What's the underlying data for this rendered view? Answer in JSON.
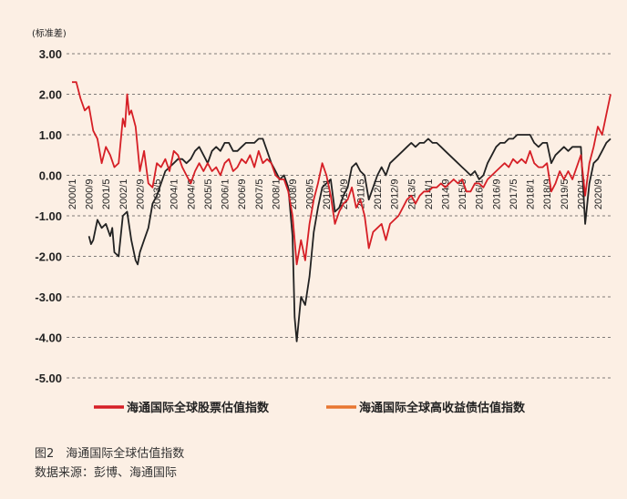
{
  "chart_data": {
    "type": "line",
    "unit_label": "(标准差)",
    "ylim": [
      -5.0,
      3.0
    ],
    "y_ticks": [
      "3.00",
      "2.00",
      "1.00",
      "0.00",
      "-1.00",
      "-2.00",
      "-3.00",
      "-4.00",
      "-5.00"
    ],
    "x_ticks": [
      "2000/1",
      "2000/9",
      "2001/5",
      "2002/1",
      "2002/9",
      "2003/5",
      "2004/1",
      "2004/9",
      "2005/5",
      "2006/1",
      "2006/9",
      "2007/5",
      "2008/1",
      "2008/9",
      "2009/5",
      "2010/1",
      "2010/9",
      "2011/5",
      "2012/1",
      "2012/9",
      "2013/5",
      "2014/1",
      "2014/9",
      "2015/5",
      "2016/1",
      "2016/9",
      "2017/5",
      "2018/1",
      "2018/9",
      "2019/5",
      "2020/1",
      "2020/9"
    ],
    "grid": "horizontal-dashed",
    "legend_position": "bottom",
    "series": [
      {
        "name": "海通国际全球股票估值指数",
        "color": "#d61f26",
        "points": [
          [
            "2000/1",
            2.3
          ],
          [
            "2000/3",
            2.3
          ],
          [
            "2000/5",
            1.9
          ],
          [
            "2000/7",
            1.6
          ],
          [
            "2000/9",
            1.7
          ],
          [
            "2000/11",
            1.1
          ],
          [
            "2001/1",
            0.9
          ],
          [
            "2001/3",
            0.3
          ],
          [
            "2001/5",
            0.7
          ],
          [
            "2001/7",
            0.5
          ],
          [
            "2001/9",
            0.2
          ],
          [
            "2001/11",
            0.3
          ],
          [
            "2002/1",
            1.4
          ],
          [
            "2002/2",
            1.2
          ],
          [
            "2002/3",
            2.0
          ],
          [
            "2002/4",
            1.5
          ],
          [
            "2002/5",
            1.6
          ],
          [
            "2002/7",
            1.2
          ],
          [
            "2002/9",
            0.1
          ],
          [
            "2002/11",
            0.6
          ],
          [
            "2003/1",
            -0.2
          ],
          [
            "2003/3",
            -0.3
          ],
          [
            "2003/5",
            0.3
          ],
          [
            "2003/7",
            0.2
          ],
          [
            "2003/9",
            0.4
          ],
          [
            "2003/11",
            0.1
          ],
          [
            "2004/1",
            0.6
          ],
          [
            "2004/3",
            0.5
          ],
          [
            "2004/5",
            0.2
          ],
          [
            "2004/7",
            0.0
          ],
          [
            "2004/9",
            -0.2
          ],
          [
            "2004/11",
            0.1
          ],
          [
            "2005/1",
            0.3
          ],
          [
            "2005/3",
            0.1
          ],
          [
            "2005/5",
            0.3
          ],
          [
            "2005/7",
            0.1
          ],
          [
            "2005/9",
            0.2
          ],
          [
            "2005/11",
            0.0
          ],
          [
            "2006/1",
            0.3
          ],
          [
            "2006/3",
            0.4
          ],
          [
            "2006/5",
            0.1
          ],
          [
            "2006/7",
            0.2
          ],
          [
            "2006/9",
            0.4
          ],
          [
            "2006/11",
            0.3
          ],
          [
            "2007/1",
            0.5
          ],
          [
            "2007/3",
            0.2
          ],
          [
            "2007/5",
            0.6
          ],
          [
            "2007/7",
            0.3
          ],
          [
            "2007/9",
            0.4
          ],
          [
            "2007/11",
            0.3
          ],
          [
            "2008/1",
            0.0
          ],
          [
            "2008/3",
            -0.1
          ],
          [
            "2008/5",
            -0.1
          ],
          [
            "2008/7",
            -0.4
          ],
          [
            "2008/9",
            -1.0
          ],
          [
            "2008/11",
            -2.2
          ],
          [
            "2009/1",
            -1.6
          ],
          [
            "2009/3",
            -2.1
          ],
          [
            "2009/5",
            -1.2
          ],
          [
            "2009/7",
            -0.6
          ],
          [
            "2009/9",
            -0.2
          ],
          [
            "2009/11",
            0.3
          ],
          [
            "2010/1",
            0.0
          ],
          [
            "2010/3",
            -0.5
          ],
          [
            "2010/5",
            -1.2
          ],
          [
            "2010/7",
            -0.9
          ],
          [
            "2010/9",
            -0.7
          ],
          [
            "2010/11",
            -0.6
          ],
          [
            "2011/1",
            -0.3
          ],
          [
            "2011/3",
            -0.8
          ],
          [
            "2011/5",
            -0.6
          ],
          [
            "2011/7",
            -1.0
          ],
          [
            "2011/9",
            -1.8
          ],
          [
            "2011/11",
            -1.4
          ],
          [
            "2012/1",
            -1.3
          ],
          [
            "2012/3",
            -1.2
          ],
          [
            "2012/5",
            -1.6
          ],
          [
            "2012/7",
            -1.2
          ],
          [
            "2012/9",
            -1.1
          ],
          [
            "2012/11",
            -1.0
          ],
          [
            "2013/1",
            -0.8
          ],
          [
            "2013/3",
            -0.6
          ],
          [
            "2013/5",
            -0.5
          ],
          [
            "2013/7",
            -0.7
          ],
          [
            "2013/9",
            -0.5
          ],
          [
            "2013/11",
            -0.4
          ],
          [
            "2014/1",
            -0.4
          ],
          [
            "2014/3",
            -0.3
          ],
          [
            "2014/5",
            -0.3
          ],
          [
            "2014/7",
            -0.2
          ],
          [
            "2014/9",
            -0.3
          ],
          [
            "2014/11",
            -0.2
          ],
          [
            "2015/1",
            -0.1
          ],
          [
            "2015/3",
            -0.2
          ],
          [
            "2015/5",
            -0.1
          ],
          [
            "2015/7",
            -0.4
          ],
          [
            "2015/9",
            -0.4
          ],
          [
            "2015/11",
            -0.2
          ],
          [
            "2016/1",
            -0.2
          ],
          [
            "2016/3",
            -0.3
          ],
          [
            "2016/5",
            -0.1
          ],
          [
            "2016/7",
            0.0
          ],
          [
            "2016/9",
            0.1
          ],
          [
            "2016/11",
            0.2
          ],
          [
            "2017/1",
            0.3
          ],
          [
            "2017/3",
            0.2
          ],
          [
            "2017/5",
            0.4
          ],
          [
            "2017/7",
            0.3
          ],
          [
            "2017/9",
            0.4
          ],
          [
            "2017/11",
            0.3
          ],
          [
            "2018/1",
            0.6
          ],
          [
            "2018/3",
            0.3
          ],
          [
            "2018/5",
            0.2
          ],
          [
            "2018/7",
            0.2
          ],
          [
            "2018/9",
            0.3
          ],
          [
            "2018/11",
            -0.4
          ],
          [
            "2019/1",
            -0.2
          ],
          [
            "2019/3",
            0.1
          ],
          [
            "2019/5",
            -0.1
          ],
          [
            "2019/7",
            0.1
          ],
          [
            "2019/9",
            -0.1
          ],
          [
            "2019/11",
            0.2
          ],
          [
            "2020/1",
            0.5
          ],
          [
            "2020/3",
            -0.5
          ],
          [
            "2020/5",
            0.3
          ],
          [
            "2020/7",
            0.7
          ],
          [
            "2020/9",
            1.2
          ],
          [
            "2020/11",
            1.0
          ],
          [
            "2021/1",
            1.5
          ],
          [
            "2021/3",
            2.0
          ]
        ]
      },
      {
        "name": "海通国际全球高收益债估值指数",
        "color": "#e87630",
        "points": []
      },
      {
        "name": "",
        "color": "#222222",
        "points": [
          [
            "2000/9",
            -1.5
          ],
          [
            "2000/10",
            -1.7
          ],
          [
            "2000/11",
            -1.6
          ],
          [
            "2001/1",
            -1.1
          ],
          [
            "2001/3",
            -1.3
          ],
          [
            "2001/5",
            -1.2
          ],
          [
            "2001/7",
            -1.5
          ],
          [
            "2001/8",
            -1.3
          ],
          [
            "2001/9",
            -1.9
          ],
          [
            "2001/11",
            -2.0
          ],
          [
            "2002/1",
            -1.0
          ],
          [
            "2002/3",
            -0.9
          ],
          [
            "2002/5",
            -1.6
          ],
          [
            "2002/7",
            -2.1
          ],
          [
            "2002/8",
            -2.2
          ],
          [
            "2002/9",
            -1.9
          ],
          [
            "2002/11",
            -1.6
          ],
          [
            "2003/1",
            -1.3
          ],
          [
            "2003/3",
            -0.7
          ],
          [
            "2003/5",
            -0.5
          ],
          [
            "2003/7",
            -0.2
          ],
          [
            "2003/9",
            0.1
          ],
          [
            "2003/11",
            0.2
          ],
          [
            "2004/1",
            0.3
          ],
          [
            "2004/3",
            0.4
          ],
          [
            "2004/5",
            0.4
          ],
          [
            "2004/7",
            0.3
          ],
          [
            "2004/9",
            0.4
          ],
          [
            "2004/11",
            0.6
          ],
          [
            "2005/1",
            0.7
          ],
          [
            "2005/3",
            0.5
          ],
          [
            "2005/5",
            0.3
          ],
          [
            "2005/7",
            0.6
          ],
          [
            "2005/9",
            0.7
          ],
          [
            "2005/11",
            0.6
          ],
          [
            "2006/1",
            0.8
          ],
          [
            "2006/3",
            0.8
          ],
          [
            "2006/5",
            0.6
          ],
          [
            "2006/7",
            0.6
          ],
          [
            "2006/9",
            0.7
          ],
          [
            "2006/11",
            0.8
          ],
          [
            "2007/1",
            0.8
          ],
          [
            "2007/3",
            0.8
          ],
          [
            "2007/5",
            0.9
          ],
          [
            "2007/7",
            0.9
          ],
          [
            "2007/9",
            0.6
          ],
          [
            "2007/11",
            0.3
          ],
          [
            "2008/1",
            0.1
          ],
          [
            "2008/3",
            -0.1
          ],
          [
            "2008/5",
            0.0
          ],
          [
            "2008/7",
            -0.3
          ],
          [
            "2008/9",
            -1.5
          ],
          [
            "2008/10",
            -3.5
          ],
          [
            "2008/11",
            -4.1
          ],
          [
            "2009/1",
            -3.0
          ],
          [
            "2009/3",
            -3.2
          ],
          [
            "2009/5",
            -2.5
          ],
          [
            "2009/7",
            -1.4
          ],
          [
            "2009/9",
            -0.8
          ],
          [
            "2009/11",
            -0.3
          ],
          [
            "2010/1",
            -0.2
          ],
          [
            "2010/3",
            -0.1
          ],
          [
            "2010/5",
            -0.9
          ],
          [
            "2010/7",
            -0.8
          ],
          [
            "2010/9",
            -0.5
          ],
          [
            "2010/11",
            -0.3
          ],
          [
            "2011/1",
            0.2
          ],
          [
            "2011/3",
            0.3
          ],
          [
            "2011/5",
            0.1
          ],
          [
            "2011/7",
            0.0
          ],
          [
            "2011/9",
            -0.6
          ],
          [
            "2011/11",
            -0.3
          ],
          [
            "2012/1",
            0.0
          ],
          [
            "2012/3",
            0.2
          ],
          [
            "2012/5",
            0.0
          ],
          [
            "2012/7",
            0.3
          ],
          [
            "2012/9",
            0.4
          ],
          [
            "2012/11",
            0.5
          ],
          [
            "2013/1",
            0.6
          ],
          [
            "2013/3",
            0.7
          ],
          [
            "2013/5",
            0.8
          ],
          [
            "2013/7",
            0.7
          ],
          [
            "2013/9",
            0.8
          ],
          [
            "2013/11",
            0.8
          ],
          [
            "2014/1",
            0.9
          ],
          [
            "2014/3",
            0.8
          ],
          [
            "2014/5",
            0.8
          ],
          [
            "2014/7",
            0.7
          ],
          [
            "2014/9",
            0.6
          ],
          [
            "2014/11",
            0.5
          ],
          [
            "2015/1",
            0.4
          ],
          [
            "2015/3",
            0.3
          ],
          [
            "2015/5",
            0.2
          ],
          [
            "2015/7",
            0.1
          ],
          [
            "2015/9",
            0.0
          ],
          [
            "2015/11",
            0.1
          ],
          [
            "2016/1",
            -0.1
          ],
          [
            "2016/3",
            0.0
          ],
          [
            "2016/5",
            0.3
          ],
          [
            "2016/7",
            0.5
          ],
          [
            "2016/9",
            0.7
          ],
          [
            "2016/11",
            0.8
          ],
          [
            "2017/1",
            0.8
          ],
          [
            "2017/3",
            0.9
          ],
          [
            "2017/5",
            0.9
          ],
          [
            "2017/7",
            1.0
          ],
          [
            "2017/9",
            1.0
          ],
          [
            "2017/11",
            1.0
          ],
          [
            "2018/1",
            1.0
          ],
          [
            "2018/3",
            0.8
          ],
          [
            "2018/5",
            0.7
          ],
          [
            "2018/7",
            0.8
          ],
          [
            "2018/9",
            0.8
          ],
          [
            "2018/11",
            0.3
          ],
          [
            "2019/1",
            0.5
          ],
          [
            "2019/3",
            0.6
          ],
          [
            "2019/5",
            0.7
          ],
          [
            "2019/7",
            0.6
          ],
          [
            "2019/9",
            0.7
          ],
          [
            "2019/11",
            0.7
          ],
          [
            "2020/1",
            0.7
          ],
          [
            "2020/3",
            -1.2
          ],
          [
            "2020/5",
            -0.2
          ],
          [
            "2020/7",
            0.3
          ],
          [
            "2020/9",
            0.4
          ],
          [
            "2020/11",
            0.6
          ],
          [
            "2021/1",
            0.8
          ],
          [
            "2021/3",
            0.9
          ]
        ]
      }
    ]
  },
  "caption": {
    "title": "图2　海通国际全球估值指数",
    "source": "数据来源：彭博、海通国际"
  }
}
